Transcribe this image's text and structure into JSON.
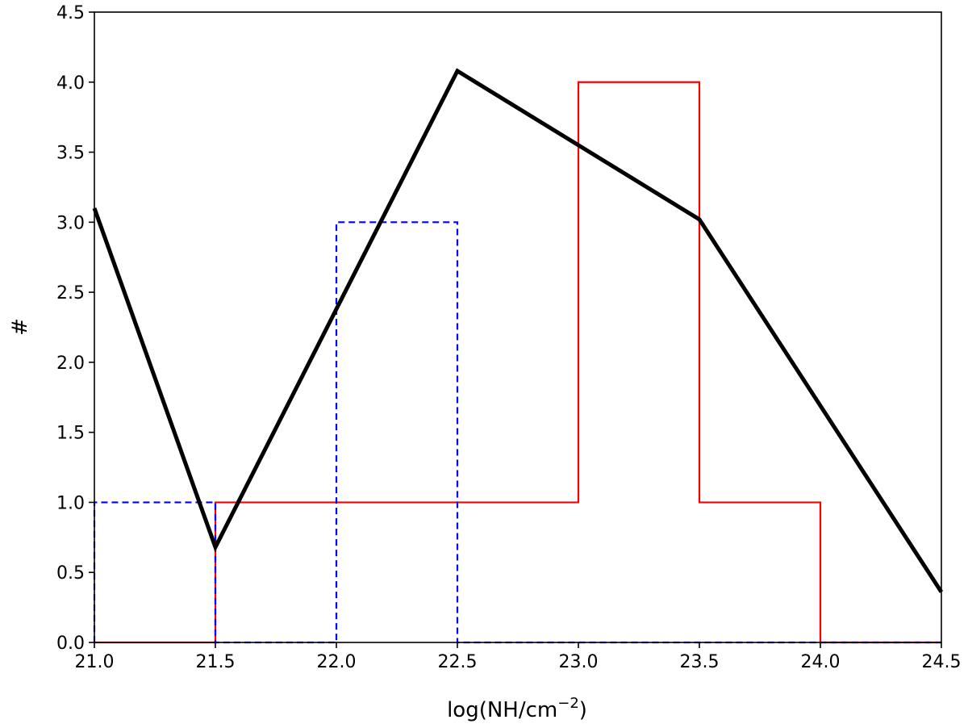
{
  "chart_data": {
    "type": "line",
    "xlabel_base": "log(NH/cm",
    "xlabel_sup": "−2",
    "xlabel_close": ")",
    "ylabel": "#",
    "xlim": [
      21.0,
      24.5
    ],
    "ylim": [
      0.0,
      4.5
    ],
    "xticks": [
      21.0,
      21.5,
      22.0,
      22.5,
      23.0,
      23.5,
      24.0,
      24.5
    ],
    "xtick_labels": [
      "21.0",
      "21.5",
      "22.0",
      "22.5",
      "23.0",
      "23.5",
      "24.0",
      "24.5"
    ],
    "yticks": [
      0.0,
      0.5,
      1.0,
      1.5,
      2.0,
      2.5,
      3.0,
      3.5,
      4.0,
      4.5
    ],
    "ytick_labels": [
      "0.0",
      "0.5",
      "1.0",
      "1.5",
      "2.0",
      "2.5",
      "3.0",
      "3.5",
      "4.0",
      "4.5"
    ],
    "grid": false,
    "series": [
      {
        "style": "step-histogram",
        "color": "#ff0000",
        "dash": "solid",
        "bin_edges": [
          21.0,
          21.5,
          22.0,
          22.5,
          23.0,
          23.5,
          24.0,
          24.5
        ],
        "counts": [
          0,
          1,
          1,
          1,
          4,
          1,
          0
        ]
      },
      {
        "style": "step-histogram",
        "color": "#0000ff",
        "dash": "dashed",
        "bin_edges": [
          21.0,
          21.5,
          22.0,
          22.5,
          23.0,
          23.5,
          24.0,
          24.5
        ],
        "counts": [
          1,
          0,
          3,
          0,
          0,
          0,
          0
        ]
      },
      {
        "style": "line",
        "color": "#000000",
        "dash": "solid",
        "x": [
          21.0,
          21.5,
          22.5,
          23.5,
          24.5
        ],
        "y": [
          3.1,
          0.68,
          4.08,
          3.02,
          0.36
        ]
      }
    ]
  }
}
